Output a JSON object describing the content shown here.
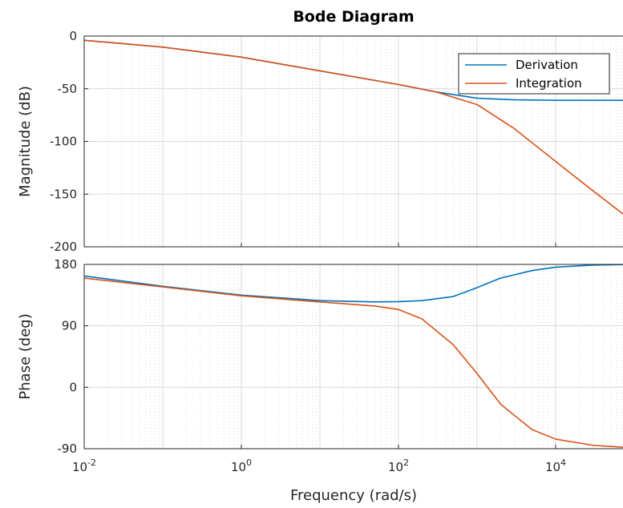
{
  "chart_data": {
    "type": "line",
    "title": "Bode Diagram",
    "xlabel": "Frequency  (rad/s)",
    "xscale": "log",
    "xlim": [
      0.01,
      100000
    ],
    "xticks": [
      {
        "base": "10",
        "exp": "-2",
        "value": 0.01
      },
      {
        "base": "10",
        "exp": "0",
        "value": 1
      },
      {
        "base": "10",
        "exp": "2",
        "value": 100
      },
      {
        "base": "10",
        "exp": "4",
        "value": 10000
      }
    ],
    "grid": true,
    "legend": {
      "placement": "top-right",
      "entries": [
        "Derivation",
        "Integration"
      ]
    },
    "panels": [
      {
        "id": "magnitude",
        "ylabel": "Magnitude (dB)",
        "ylim": [
          -200,
          0
        ],
        "yticks": [
          0,
          -50,
          -100,
          -150,
          -200
        ],
        "series": [
          {
            "name": "Derivation",
            "color": "#0072BD",
            "x": [
              0.01,
              0.1,
              1,
              10,
              100,
              300,
              1000,
              3000,
              10000,
              100000
            ],
            "y": [
              -4,
              -10.5,
              -20,
              -33,
              -46,
              -53,
              -59,
              -60.5,
              -61,
              -61
            ]
          },
          {
            "name": "Integration",
            "color": "#D95319",
            "x": [
              0.01,
              0.1,
              1,
              10,
              100,
              300,
              1000,
              3000,
              10000,
              30000,
              100000
            ],
            "y": [
              -4,
              -10.5,
              -20,
              -33,
              -46,
              -53,
              -65,
              -88,
              -119,
              -147,
              -177
            ]
          }
        ]
      },
      {
        "id": "phase",
        "ylabel": "Phase (deg)",
        "ylim": [
          -90,
          180
        ],
        "yticks": [
          180,
          90,
          0,
          -90
        ],
        "series": [
          {
            "name": "Derivation",
            "color": "#0072BD",
            "x": [
              0.01,
              0.1,
              1,
              10,
              50,
              100,
              200,
              500,
              1000,
              2000,
              5000,
              10000,
              30000,
              100000
            ],
            "y": [
              163,
              148,
              135,
              127,
              125,
              125.5,
              127,
              133,
              146,
              160,
              171,
              176,
              179,
              180
            ]
          },
          {
            "name": "Integration",
            "color": "#D95319",
            "x": [
              0.01,
              0.1,
              1,
              10,
              50,
              100,
              200,
              500,
              1000,
              2000,
              5000,
              10000,
              30000,
              100000
            ],
            "y": [
              160,
              147,
              134,
              125,
              119,
              114,
              100,
              62,
              20,
              -25,
              -62,
              -76,
              -85,
              -89
            ]
          }
        ]
      }
    ]
  }
}
